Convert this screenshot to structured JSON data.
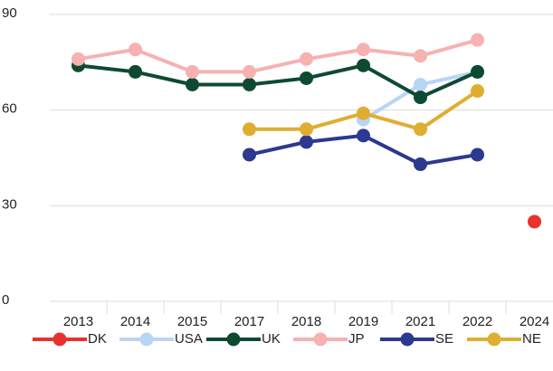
{
  "chart_data": {
    "type": "line",
    "categories": [
      "2013",
      "2014",
      "2015",
      "2017",
      "2018",
      "2019",
      "2021",
      "2022",
      "2024"
    ],
    "series": [
      {
        "name": "DK",
        "color": "#e8322b",
        "values": [
          null,
          null,
          null,
          null,
          null,
          null,
          null,
          null,
          25
        ]
      },
      {
        "name": "USA",
        "color": "#b9d5f6",
        "values": [
          null,
          null,
          null,
          null,
          null,
          57,
          68,
          72,
          null
        ]
      },
      {
        "name": "UK",
        "color": "#0e4a32",
        "values": [
          74,
          72,
          68,
          68,
          70,
          74,
          64,
          72,
          null
        ]
      },
      {
        "name": "JP",
        "color": "#f7b1b1",
        "values": [
          76,
          79,
          72,
          72,
          76,
          79,
          77,
          82,
          null
        ]
      },
      {
        "name": "SE",
        "color": "#2b3990",
        "values": [
          null,
          null,
          null,
          46,
          50,
          52,
          43,
          46,
          null
        ]
      },
      {
        "name": "NE",
        "color": "#dfae31",
        "values": [
          null,
          null,
          null,
          54,
          54,
          59,
          54,
          66,
          null
        ]
      }
    ],
    "ylim": [
      0,
      90
    ],
    "yticks": [
      0,
      30,
      60,
      90
    ],
    "grid": true,
    "legend": "bottom"
  }
}
